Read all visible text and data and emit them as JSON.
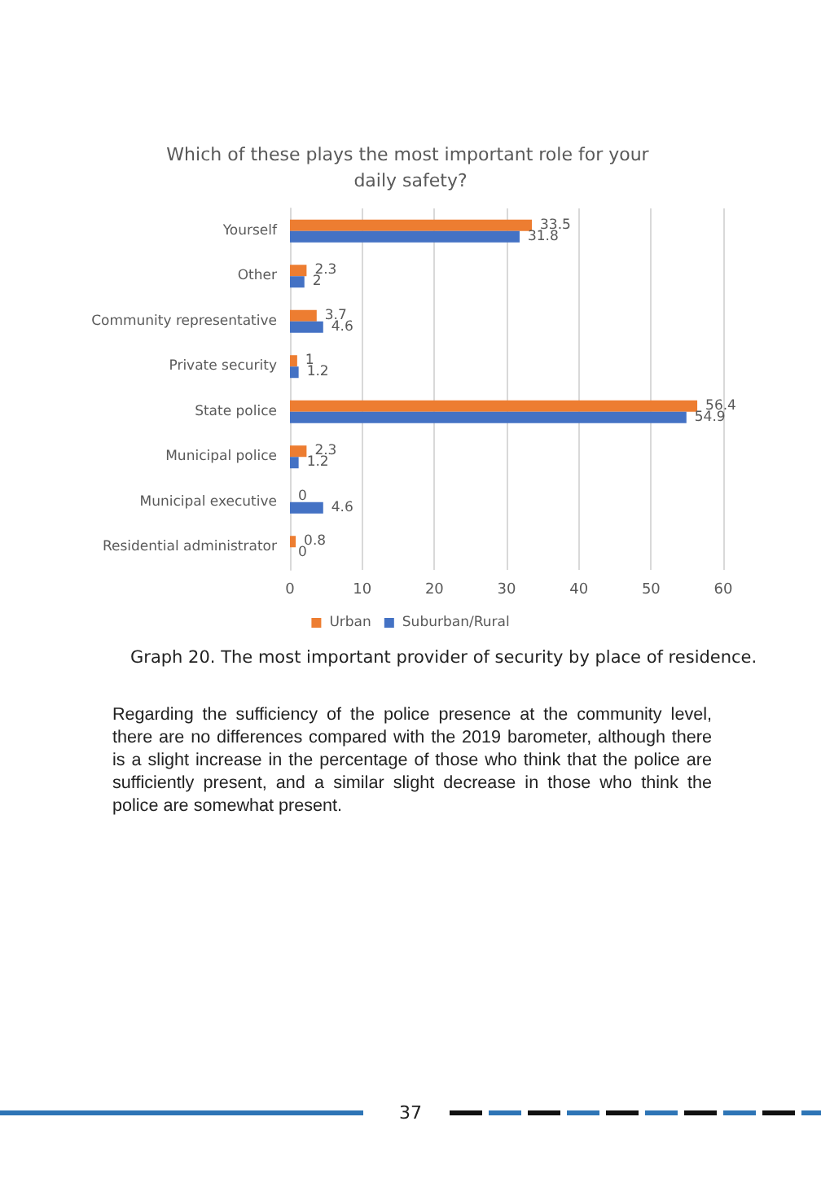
{
  "chart_data": {
    "type": "bar",
    "orientation": "horizontal",
    "title": "Which of these plays the most important role for your daily safety?",
    "categories": [
      "Yourself",
      "Other",
      "Community representative",
      "Private security",
      "State police",
      "Municipal police",
      "Municipal executive",
      "Residential administrator"
    ],
    "series": [
      {
        "name": "Urban",
        "color": "#ed7d31",
        "values": [
          33.5,
          2.3,
          3.7,
          1,
          56.4,
          2.3,
          0,
          0.8
        ]
      },
      {
        "name": "Suburban/Rural",
        "color": "#4472c4",
        "values": [
          31.8,
          2,
          4.6,
          1.2,
          54.9,
          1.2,
          4.6,
          0
        ]
      }
    ],
    "xlim": [
      0,
      60
    ],
    "xticks": [
      0,
      10,
      20,
      30,
      40,
      50,
      60
    ],
    "grid": "x",
    "legend": "bottom",
    "data_labels": true,
    "annotations": [
      "Graph 20. The most important provider of security by place of residence.",
      "Regarding the sufficiency of the police presence at the community level, there are no differences compared with the 2019 barometer, although there is a slight increase in the percentage of those who think that the police are sufficiently present, and a similar slight decrease in those who think the police are somewhat present.",
      "37"
    ]
  }
}
